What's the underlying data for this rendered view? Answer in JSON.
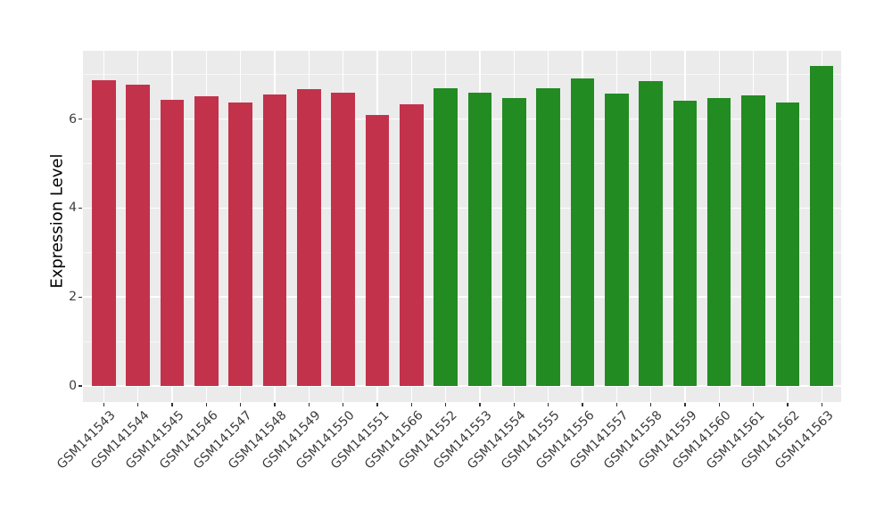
{
  "figure": {
    "background_color": "#FFFFFF",
    "panel_background_color": "#EBEBEB",
    "grid_major_color": "#FFFFFF",
    "grid_minor_color": "#FFFFFF",
    "tick_mark_color": "#333333",
    "tick_label_color": "#3D3D3D",
    "axis_title_color": "#000000",
    "bar_color_red": "#C3324B",
    "bar_color_green": "#228B22"
  },
  "chart_data": {
    "type": "bar",
    "title": "",
    "xlabel": "",
    "ylabel": "Expression Level",
    "ylim": [
      0,
      7.55
    ],
    "yticks_major": [
      0,
      2,
      4,
      6
    ],
    "yticks_minor": [
      1,
      3,
      5,
      7
    ],
    "grid": "major and minor horizontal white gridlines, vertical white gridlines at each bar center, hidden behind bars",
    "legend_position": "none",
    "x_tick_label_rotation_deg": 45,
    "categories": [
      "GSM141543",
      "GSM141544",
      "GSM141545",
      "GSM141546",
      "GSM141547",
      "GSM141548",
      "GSM141549",
      "GSM141550",
      "GSM141551",
      "GSM141566",
      "GSM141552",
      "GSM141553",
      "GSM141554",
      "GSM141555",
      "GSM141556",
      "GSM141557",
      "GSM141558",
      "GSM141559",
      "GSM141560",
      "GSM141561",
      "GSM141562",
      "GSM141563"
    ],
    "values": [
      6.88,
      6.78,
      6.43,
      6.51,
      6.38,
      6.55,
      6.67,
      6.59,
      6.09,
      6.34,
      6.69,
      6.59,
      6.48,
      6.7,
      6.91,
      6.57,
      6.85,
      6.41,
      6.47,
      6.53,
      6.37,
      7.19
    ],
    "bar_colors": [
      "#C3324B",
      "#C3324B",
      "#C3324B",
      "#C3324B",
      "#C3324B",
      "#C3324B",
      "#C3324B",
      "#C3324B",
      "#C3324B",
      "#C3324B",
      "#228B22",
      "#228B22",
      "#228B22",
      "#228B22",
      "#228B22",
      "#228B22",
      "#228B22",
      "#228B22",
      "#228B22",
      "#228B22",
      "#228B22",
      "#228B22"
    ]
  }
}
